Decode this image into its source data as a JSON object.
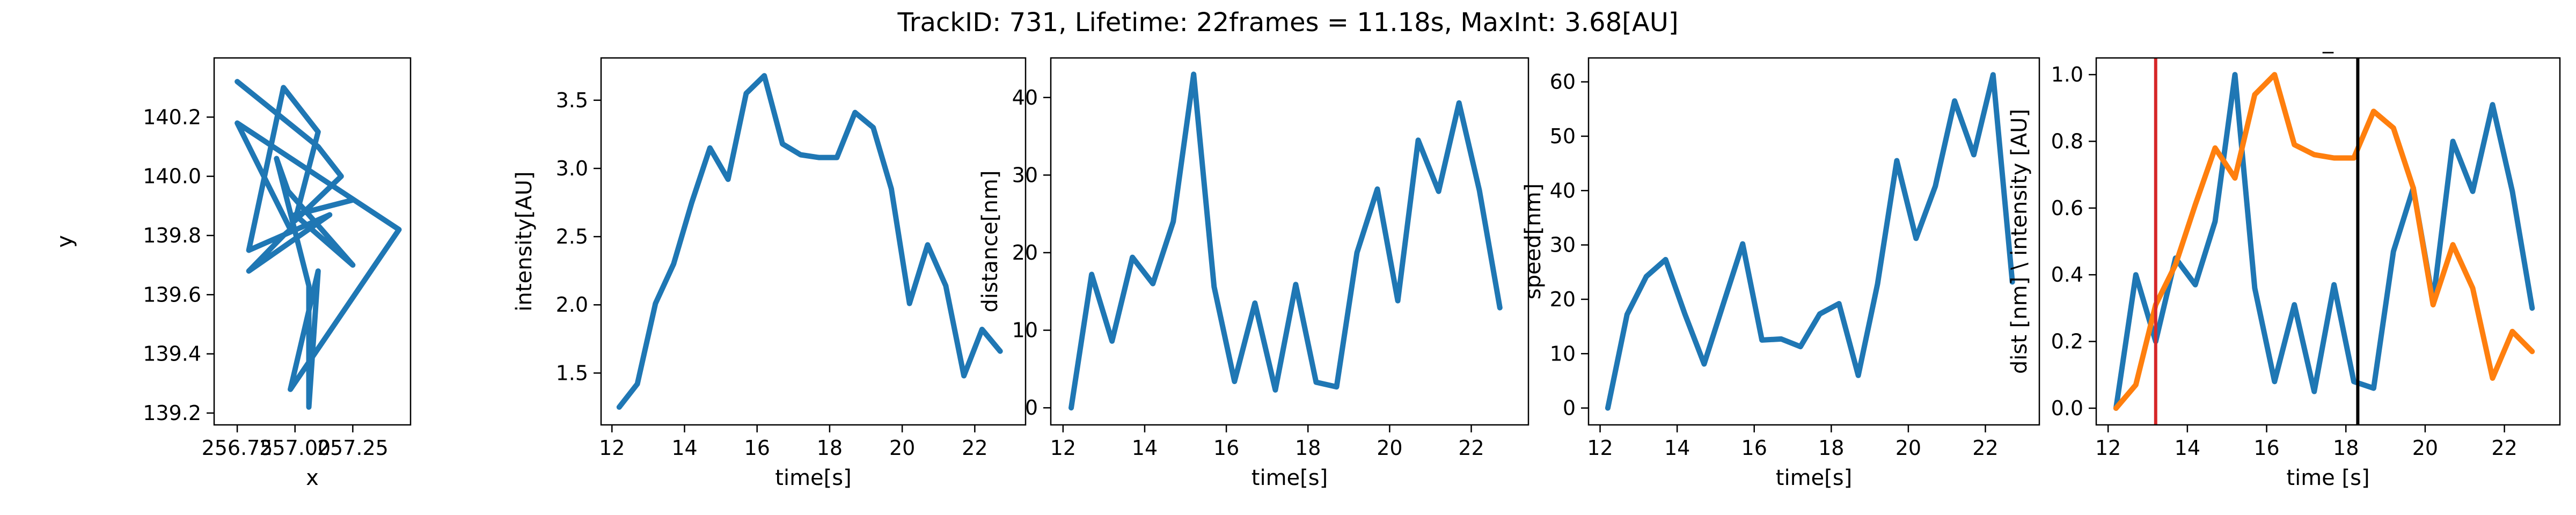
{
  "figure": {
    "title": "TrackID: 731, Lifetime: 22frames = 11.18s, MaxInt: 3.68[AU]"
  },
  "chart_data": [
    {
      "type": "line",
      "xlabel": "x",
      "ylabel": "y",
      "xlim": [
        256.65,
        257.5
      ],
      "ylim": [
        139.16,
        140.4
      ],
      "xticks": [
        256.75,
        257.0,
        257.25
      ],
      "xtick_labels": [
        "256.75",
        "257.00",
        "257.25"
      ],
      "yticks": [
        139.2,
        139.4,
        139.6,
        139.8,
        140.0,
        140.2
      ],
      "ytick_labels": [
        "139.2",
        "139.4",
        "139.6",
        "139.8",
        "140.0",
        "140.2"
      ],
      "series": [
        {
          "color": "#1f77b4",
          "x": [
            256.75,
            257.1,
            257.2,
            257.0,
            257.1,
            256.95,
            256.8,
            257.15,
            256.8,
            256.95,
            256.98,
            256.75,
            257.45,
            256.98,
            257.1,
            257.06,
            257.06,
            256.92,
            256.97,
            257.25,
            257.0,
            257.25
          ],
          "y": [
            140.32,
            140.1,
            140.0,
            139.85,
            140.15,
            140.3,
            139.75,
            139.87,
            139.68,
            139.8,
            139.82,
            140.18,
            139.82,
            139.28,
            139.68,
            139.22,
            139.63,
            140.06,
            139.95,
            139.7,
            139.87,
            139.92
          ]
        }
      ]
    },
    {
      "type": "line",
      "xlabel": "time[s]",
      "ylabel": "intensity[AU]",
      "xlim": [
        11.7,
        23.4
      ],
      "ylim": [
        1.12,
        3.81
      ],
      "xticks": [
        12,
        14,
        16,
        18,
        20,
        22
      ],
      "xtick_labels": [
        "12",
        "14",
        "16",
        "18",
        "20",
        "22"
      ],
      "yticks": [
        1.5,
        2.0,
        2.5,
        3.0,
        3.5
      ],
      "ytick_labels": [
        "1.5",
        "2.0",
        "2.5",
        "3.0",
        "3.5"
      ],
      "series": [
        {
          "color": "#1f77b4",
          "x": [
            12.2,
            12.7,
            13.2,
            13.7,
            14.2,
            14.7,
            15.2,
            15.7,
            16.2,
            16.7,
            17.2,
            17.7,
            18.2,
            18.7,
            19.2,
            19.7,
            20.2,
            20.7,
            21.2,
            21.7,
            22.2,
            22.7
          ],
          "y": [
            1.25,
            1.42,
            2.01,
            2.3,
            2.75,
            3.15,
            2.92,
            3.55,
            3.68,
            3.18,
            3.1,
            3.08,
            3.08,
            3.41,
            3.3,
            2.85,
            2.01,
            2.44,
            2.14,
            1.48,
            1.82,
            1.66
          ]
        }
      ]
    },
    {
      "type": "line",
      "xlabel": "time[s]",
      "ylabel": "distance[nm]",
      "xlim": [
        11.7,
        23.4
      ],
      "ylim": [
        -2.2,
        45.1
      ],
      "xticks": [
        12,
        14,
        16,
        18,
        20,
        22
      ],
      "xtick_labels": [
        "12",
        "14",
        "16",
        "18",
        "20",
        "22"
      ],
      "yticks": [
        0,
        10,
        20,
        30,
        40
      ],
      "ytick_labels": [
        "0",
        "10",
        "20",
        "30",
        "40"
      ],
      "series": [
        {
          "color": "#1f77b4",
          "x": [
            12.2,
            12.7,
            13.2,
            13.7,
            14.2,
            14.7,
            15.2,
            15.7,
            16.2,
            16.7,
            17.2,
            17.7,
            18.2,
            18.7,
            19.2,
            19.7,
            20.2,
            20.7,
            21.2,
            21.7,
            22.2,
            22.7
          ],
          "y": [
            0,
            17.2,
            8.6,
            19.4,
            16,
            24,
            43,
            15.6,
            3.4,
            13.5,
            2.3,
            15.9,
            3.3,
            2.7,
            20,
            28.2,
            13.8,
            34.5,
            27.9,
            39.3,
            28,
            12.9
          ]
        }
      ]
    },
    {
      "type": "line",
      "xlabel": "time[s]",
      "ylabel": "speed[nm]",
      "xlim": [
        11.7,
        23.4
      ],
      "ylim": [
        -3.1,
        64.4
      ],
      "xticks": [
        12,
        14,
        16,
        18,
        20,
        22
      ],
      "xtick_labels": [
        "12",
        "14",
        "16",
        "18",
        "20",
        "22"
      ],
      "yticks": [
        0,
        10,
        20,
        30,
        40,
        50,
        60
      ],
      "ytick_labels": [
        "0",
        "10",
        "20",
        "30",
        "40",
        "50",
        "60"
      ],
      "series": [
        {
          "color": "#1f77b4",
          "x": [
            12.2,
            12.7,
            13.2,
            13.7,
            14.2,
            14.7,
            15.2,
            15.7,
            16.2,
            16.7,
            17.2,
            17.7,
            18.2,
            18.7,
            19.2,
            19.7,
            20.2,
            20.7,
            21.2,
            21.7,
            22.2,
            22.7
          ],
          "y": [
            0,
            17.2,
            24.2,
            27.3,
            17.3,
            8.1,
            19.2,
            30.2,
            12.5,
            12.7,
            11.3,
            17.3,
            19.2,
            6,
            22.8,
            45.5,
            31.2,
            40.8,
            56.5,
            46.6,
            61.3,
            23.2
          ]
        }
      ]
    },
    {
      "type": "line",
      "title": "_",
      "xlabel": "time [s]",
      "ylabel": "dist [nm] \\ intensity [AU]",
      "xlim": [
        11.7,
        23.4
      ],
      "ylim": [
        -0.05,
        1.05
      ],
      "xticks": [
        12,
        14,
        16,
        18,
        20,
        22
      ],
      "xtick_labels": [
        "12",
        "14",
        "16",
        "18",
        "20",
        "22"
      ],
      "yticks": [
        0.0,
        0.2,
        0.4,
        0.6,
        0.8,
        1.0
      ],
      "ytick_labels": [
        "0.0",
        "0.2",
        "0.4",
        "0.6",
        "0.8",
        "1.0"
      ],
      "vlines": [
        {
          "x": 13.2,
          "color": "#d62728"
        },
        {
          "x": 18.3,
          "color": "#000000"
        }
      ],
      "series": [
        {
          "color": "#1f77b4",
          "x": [
            12.2,
            12.7,
            13.2,
            13.7,
            14.2,
            14.7,
            15.2,
            15.7,
            16.2,
            16.7,
            17.2,
            17.7,
            18.2,
            18.7,
            19.2,
            19.7,
            20.2,
            20.7,
            21.2,
            21.7,
            22.2,
            22.7
          ],
          "y": [
            0,
            0.4,
            0.2,
            0.45,
            0.37,
            0.56,
            1.0,
            0.36,
            0.08,
            0.31,
            0.05,
            0.37,
            0.08,
            0.06,
            0.47,
            0.66,
            0.32,
            0.8,
            0.65,
            0.91,
            0.65,
            0.3
          ]
        },
        {
          "color": "#ff7f0e",
          "x": [
            12.2,
            12.7,
            13.2,
            13.7,
            14.2,
            14.7,
            15.2,
            15.7,
            16.2,
            16.7,
            17.2,
            17.7,
            18.2,
            18.7,
            19.2,
            19.7,
            20.2,
            20.7,
            21.2,
            21.7,
            22.2,
            22.7
          ],
          "y": [
            0,
            0.07,
            0.31,
            0.43,
            0.61,
            0.78,
            0.69,
            0.94,
            1.0,
            0.79,
            0.76,
            0.75,
            0.75,
            0.89,
            0.84,
            0.66,
            0.31,
            0.49,
            0.36,
            0.09,
            0.23,
            0.17
          ]
        }
      ]
    }
  ]
}
